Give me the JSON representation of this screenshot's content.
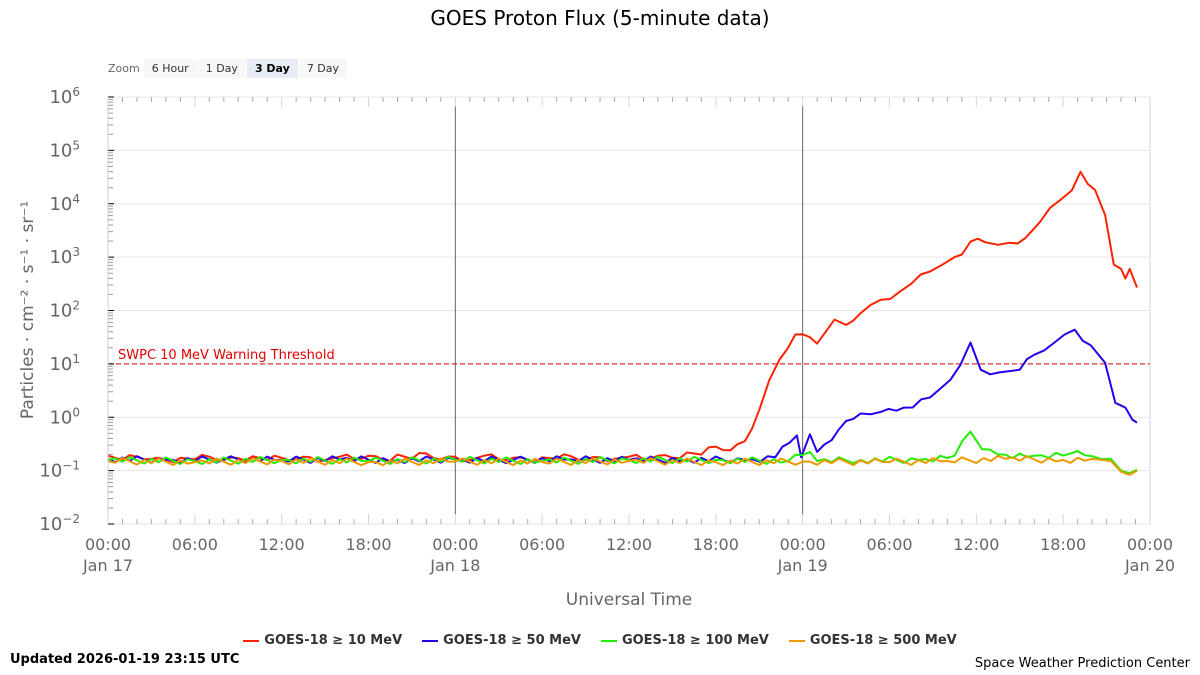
{
  "chart_data": {
    "type": "line",
    "title": "GOES Proton Flux (5-minute data)",
    "xlabel": "Universal Time",
    "ylabel": "Particles · cm⁻² · s⁻¹ · sr⁻¹",
    "x_unit": "hours since 2026-01-17 00:00 UTC",
    "xlim": [
      0,
      72
    ],
    "ylim_log10": [
      -2,
      6
    ],
    "y_scale": "log",
    "grid": true,
    "legend_position": "bottom",
    "y_ticks": [
      {
        "exp": -2,
        "base": "10",
        "sup": "−2"
      },
      {
        "exp": -1,
        "base": "10",
        "sup": "−1"
      },
      {
        "exp": 0,
        "base": "10",
        "sup": "0"
      },
      {
        "exp": 1,
        "base": "10",
        "sup": "1"
      },
      {
        "exp": 2,
        "base": "10",
        "sup": "2"
      },
      {
        "exp": 3,
        "base": "10",
        "sup": "3"
      },
      {
        "exp": 4,
        "base": "10",
        "sup": "4"
      },
      {
        "exp": 5,
        "base": "10",
        "sup": "5"
      },
      {
        "exp": 6,
        "base": "10",
        "sup": "6"
      }
    ],
    "x_ticks": [
      {
        "h": 0,
        "time": "00:00",
        "date": "Jan 17"
      },
      {
        "h": 6,
        "time": "06:00",
        "date": ""
      },
      {
        "h": 12,
        "time": "12:00",
        "date": ""
      },
      {
        "h": 18,
        "time": "18:00",
        "date": ""
      },
      {
        "h": 24,
        "time": "00:00",
        "date": "Jan 18"
      },
      {
        "h": 30,
        "time": "06:00",
        "date": ""
      },
      {
        "h": 36,
        "time": "12:00",
        "date": ""
      },
      {
        "h": 42,
        "time": "18:00",
        "date": ""
      },
      {
        "h": 48,
        "time": "00:00",
        "date": "Jan 19"
      },
      {
        "h": 54,
        "time": "06:00",
        "date": ""
      },
      {
        "h": 60,
        "time": "12:00",
        "date": ""
      },
      {
        "h": 66,
        "time": "18:00",
        "date": ""
      },
      {
        "h": 72,
        "time": "00:00",
        "date": "Jan 20"
      }
    ],
    "day_lines_hours": [
      24,
      48
    ],
    "threshold": {
      "label": "SWPC 10 MeV Warning Threshold",
      "log10": 1,
      "color": "#e00000"
    },
    "series": [
      {
        "name": "GOES-18 ≥ 10 MeV",
        "color": "#ff2200",
        "points": [
          [
            0,
            -0.72
          ],
          [
            1,
            -0.8
          ],
          [
            2,
            -0.74
          ],
          [
            3,
            -0.78
          ],
          [
            4,
            -0.8
          ],
          [
            5,
            -0.76
          ],
          [
            6,
            -0.79
          ],
          [
            7,
            -0.74
          ],
          [
            8,
            -0.8
          ],
          [
            9,
            -0.77
          ],
          [
            10,
            -0.73
          ],
          [
            11,
            -0.8
          ],
          [
            12,
            -0.76
          ],
          [
            13,
            -0.79
          ],
          [
            14,
            -0.75
          ],
          [
            15,
            -0.8
          ],
          [
            16,
            -0.74
          ],
          [
            17,
            -0.78
          ],
          [
            18,
            -0.72
          ],
          [
            19,
            -0.8
          ],
          [
            20,
            -0.7
          ],
          [
            21,
            -0.78
          ],
          [
            22,
            -0.68
          ],
          [
            23,
            -0.79
          ],
          [
            24,
            -0.74
          ],
          [
            25,
            -0.8
          ],
          [
            26,
            -0.72
          ],
          [
            27,
            -0.79
          ],
          [
            28,
            -0.76
          ],
          [
            29,
            -0.8
          ],
          [
            30,
            -0.75
          ],
          [
            31,
            -0.78
          ],
          [
            32,
            -0.73
          ],
          [
            33,
            -0.8
          ],
          [
            34,
            -0.75
          ],
          [
            35,
            -0.78
          ],
          [
            36,
            -0.74
          ],
          [
            37,
            -0.79
          ],
          [
            38,
            -0.72
          ],
          [
            39,
            -0.76
          ],
          [
            40,
            -0.66
          ],
          [
            41,
            -0.7
          ],
          [
            42,
            -0.55
          ],
          [
            43,
            -0.62
          ],
          [
            44,
            -0.45
          ],
          [
            45,
            0.14
          ],
          [
            45.7,
            0.7
          ],
          [
            46.4,
            1.08
          ],
          [
            47.5,
            1.55
          ],
          [
            48.5,
            1.5
          ],
          [
            49,
            1.38
          ],
          [
            50.2,
            1.83
          ],
          [
            51,
            1.73
          ],
          [
            52,
            1.95
          ],
          [
            53.4,
            2.2
          ],
          [
            54.7,
            2.35
          ],
          [
            55.5,
            2.5
          ],
          [
            56.8,
            2.73
          ],
          [
            57.6,
            2.85
          ],
          [
            58.5,
            3.0
          ],
          [
            59,
            3.05
          ],
          [
            59.6,
            3.29
          ],
          [
            60.6,
            3.28
          ],
          [
            61.5,
            3.23
          ],
          [
            62.3,
            3.27
          ],
          [
            63.4,
            3.36
          ],
          [
            64.4,
            3.66
          ],
          [
            65.8,
            4.07
          ],
          [
            66.6,
            4.25
          ],
          [
            67.2,
            4.6
          ],
          [
            68.2,
            4.26
          ],
          [
            68.9,
            3.79
          ],
          [
            69.5,
            2.86
          ],
          [
            70.0,
            2.78
          ],
          [
            70.3,
            2.6
          ],
          [
            70.6,
            2.78
          ],
          [
            71.1,
            2.43
          ]
        ]
      },
      {
        "name": "GOES-18 ≥ 50 MeV",
        "color": "#2200ee",
        "points": [
          [
            0,
            -0.78
          ],
          [
            4,
            -0.8
          ],
          [
            8,
            -0.79
          ],
          [
            12,
            -0.8
          ],
          [
            16,
            -0.79
          ],
          [
            20,
            -0.8
          ],
          [
            24,
            -0.79
          ],
          [
            28,
            -0.8
          ],
          [
            32,
            -0.79
          ],
          [
            36,
            -0.8
          ],
          [
            40,
            -0.79
          ],
          [
            44,
            -0.8
          ],
          [
            46.1,
            -0.75
          ],
          [
            47.6,
            -0.34
          ],
          [
            47.9,
            -0.75
          ],
          [
            48.5,
            -0.32
          ],
          [
            49,
            -0.65
          ],
          [
            50.5,
            -0.23
          ],
          [
            52,
            0.07
          ],
          [
            53.4,
            0.1
          ],
          [
            55,
            0.18
          ],
          [
            56.8,
            0.37
          ],
          [
            58.2,
            0.7
          ],
          [
            58.9,
            0.98
          ],
          [
            59.6,
            1.4
          ],
          [
            60.3,
            0.89
          ],
          [
            61.6,
            0.84
          ],
          [
            63,
            0.89
          ],
          [
            64,
            1.17
          ],
          [
            65.4,
            1.4
          ],
          [
            66.8,
            1.64
          ],
          [
            67.9,
            1.35
          ],
          [
            68.9,
            1.02
          ],
          [
            69.6,
            0.27
          ],
          [
            70.3,
            0.18
          ],
          [
            70.8,
            -0.05
          ],
          [
            71.1,
            -0.1
          ]
        ]
      },
      {
        "name": "GOES-18 ≥ 100 MeV",
        "color": "#22ee00",
        "points": [
          [
            0,
            -0.8
          ],
          [
            6,
            -0.82
          ],
          [
            12,
            -0.8
          ],
          [
            18,
            -0.82
          ],
          [
            24,
            -0.8
          ],
          [
            30,
            -0.82
          ],
          [
            36,
            -0.8
          ],
          [
            42,
            -0.8
          ],
          [
            47,
            -0.82
          ],
          [
            48.5,
            -0.65
          ],
          [
            49,
            -0.82
          ],
          [
            52,
            -0.8
          ],
          [
            56,
            -0.8
          ],
          [
            58.5,
            -0.72
          ],
          [
            59.6,
            -0.27
          ],
          [
            60.4,
            -0.6
          ],
          [
            62,
            -0.7
          ],
          [
            64,
            -0.72
          ],
          [
            66.5,
            -0.68
          ],
          [
            68,
            -0.73
          ],
          [
            69.3,
            -0.78
          ],
          [
            70,
            -1.0
          ],
          [
            70.6,
            -1.05
          ],
          [
            71.1,
            -0.98
          ]
        ]
      },
      {
        "name": "GOES-18 ≥ 500 MeV",
        "color": "#ee9900",
        "points": [
          [
            0,
            -0.82
          ],
          [
            6,
            -0.84
          ],
          [
            12,
            -0.82
          ],
          [
            18,
            -0.84
          ],
          [
            24,
            -0.83
          ],
          [
            30,
            -0.84
          ],
          [
            36,
            -0.82
          ],
          [
            42,
            -0.84
          ],
          [
            48,
            -0.83
          ],
          [
            54,
            -0.84
          ],
          [
            58,
            -0.82
          ],
          [
            62,
            -0.78
          ],
          [
            66,
            -0.8
          ],
          [
            68,
            -0.78
          ],
          [
            69.3,
            -0.82
          ],
          [
            70,
            -1.02
          ],
          [
            70.6,
            -1.08
          ],
          [
            71.1,
            -1.0
          ]
        ]
      }
    ]
  },
  "zoom": {
    "label": "Zoom",
    "buttons": [
      "6 Hour",
      "1 Day",
      "3 Day",
      "7 Day"
    ],
    "selected": "3 Day"
  },
  "footer": {
    "updated": "Updated 2026-01-19 23:15 UTC",
    "credit": "Space Weather Prediction Center"
  }
}
